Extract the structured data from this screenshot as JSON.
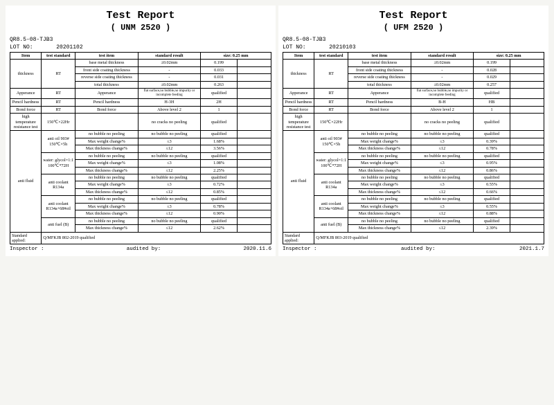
{
  "reports": [
    {
      "title": "Test Report",
      "subtitle": "( UNM 2520 )",
      "doc_no": "QR8.5-08-TJB3",
      "lot_label": "LOT NO:",
      "lot": "20201102",
      "headers": [
        "Item",
        "test standard",
        "test item",
        "standard result",
        "size: 0.25 mm",
        ""
      ],
      "thickness": {
        "item": "thickness",
        "std": "RT",
        "rows": [
          [
            "base metal thickness",
            "±0.02mm",
            "0.199",
            ""
          ],
          [
            "front side coating thickness",
            "-",
            "0.033",
            ""
          ],
          [
            "reverse side coating thickness",
            "-",
            "0.031",
            ""
          ],
          [
            "total thickness",
            "±0.02mm",
            "0.263",
            ""
          ]
        ]
      },
      "appearance": {
        "item": "Apperance",
        "std": "RT",
        "test": "Apperance",
        "res": "flat surface,no bubble,no impurity or incomplete feeding",
        "v": "qualified",
        "b": ""
      },
      "pencil": {
        "item": "Pencil hardness",
        "std": "RT",
        "test": "Pencil hardness",
        "res": "H-3H",
        "v": "2H",
        "b": ""
      },
      "bond": {
        "item": "Bond force",
        "std": "RT",
        "test": "Bond force",
        "res": "Above level 2",
        "v": "1",
        "b": ""
      },
      "hightemp": {
        "item": "high temperature resistance test",
        "std": "150℃×22Hr",
        "test": "",
        "res": "no cracks no peeling",
        "v": "qualified",
        "b": ""
      },
      "antifluid_label": "anti fluid",
      "groups": [
        {
          "name": "anti oil 903# 150℃×5h",
          "rows": [
            [
              "no bubble no peeling",
              "no bubble no peeling",
              "qualified",
              ""
            ],
            [
              "Max weight change%",
              "≤3",
              "1.68%",
              ""
            ],
            [
              "Max thickness change%",
              "≤12",
              "3.56%",
              ""
            ]
          ]
        },
        {
          "name": "water: glycol=1:1 100℃*72H",
          "rows": [
            [
              "no bubble no peeling",
              "no bubble no peeling",
              "qualified",
              ""
            ],
            [
              "Max weight change%",
              "≤3",
              "1.08%",
              ""
            ],
            [
              "Max thickness change%",
              "≤12",
              "2.25%",
              ""
            ]
          ]
        },
        {
          "name": "anti coolant R134a",
          "rows": [
            [
              "no bubble no peeling",
              "no bubble no peeling",
              "qualified",
              ""
            ],
            [
              "Max weight change%",
              "≤3",
              "0.72%",
              ""
            ],
            [
              "Max thickness change%",
              "≤12",
              "0.85%",
              ""
            ]
          ]
        },
        {
          "name": "anti coolant R134a+68#oil",
          "rows": [
            [
              "no bubble no peeling",
              "no bubble no peeling",
              "qualified",
              ""
            ],
            [
              "Max weight change%",
              "≤3",
              "0.78%",
              ""
            ],
            [
              "Max thickness change%",
              "≤12",
              "0.90%",
              ""
            ]
          ]
        },
        {
          "name": "anti fuel (B)",
          "rows": [
            [
              "no bubble no peeling",
              "no bubble no peeling",
              "qualified",
              ""
            ],
            [
              "Max thickness change%",
              "≤12",
              "2.62%",
              ""
            ]
          ]
        }
      ],
      "standard_row": {
        "label": "Standard applied:",
        "value": "Q/MFKJB 802-2019 qualified"
      },
      "footer": {
        "inspector": "Inspector :",
        "audited": "audited by:",
        "date": "2020.11.6"
      }
    },
    {
      "title": "Test Report",
      "subtitle": "( UFM 2520 )",
      "doc_no": "QR8.5-08-TJB3",
      "lot_label": "LOT NO:",
      "lot": "20210103",
      "headers": [
        "Item",
        "test standard",
        "test item",
        "standard result",
        "size: 0.25 mm",
        ""
      ],
      "thickness": {
        "item": "thickness",
        "std": "RT",
        "rows": [
          [
            "base metal thickness",
            "±0.02mm",
            "0.199",
            ""
          ],
          [
            "front side coating thickness",
            "-",
            "0.028",
            ""
          ],
          [
            "reverse side coating thickness",
            "-",
            "0.029",
            ""
          ],
          [
            "total thickness",
            "±0.02mm",
            "0.257",
            ""
          ]
        ]
      },
      "appearance": {
        "item": "Apperance",
        "std": "RT",
        "test": "Apperance",
        "res": "flat surface,no bubble,no impurity or incomplete feeding",
        "v": "qualified",
        "b": ""
      },
      "pencil": {
        "item": "Pencil hardness",
        "std": "RT",
        "test": "Pencil hardness",
        "res": "B-H",
        "v": "HB",
        "b": ""
      },
      "bond": {
        "item": "Bond force",
        "std": "RT",
        "test": "Bond force",
        "res": "Above level 2",
        "v": "1",
        "b": ""
      },
      "hightemp": {
        "item": "high temperature resistance test",
        "std": "150℃×22Hr",
        "test": "",
        "res": "no cracks no peeling",
        "v": "qualified",
        "b": ""
      },
      "antifluid_label": "anti fluid",
      "groups": [
        {
          "name": "anti oil 903# 150℃×5h",
          "rows": [
            [
              "no bubble no peeling",
              "no bubble no peeling",
              "qualified",
              ""
            ],
            [
              "Max weight change%",
              "≤3",
              "0.39%",
              ""
            ],
            [
              "Max thickness change%",
              "≤12",
              "0.78%",
              ""
            ]
          ]
        },
        {
          "name": "water: glycol=1:1 100℃*72H",
          "rows": [
            [
              "no bubble no peeling",
              "no bubble no peeling",
              "qualified",
              ""
            ],
            [
              "Max weight change%",
              "≤3",
              "0.95%",
              ""
            ],
            [
              "Max thickness change%",
              "≤12",
              "0.86%",
              ""
            ]
          ]
        },
        {
          "name": "anti coolant R134a",
          "rows": [
            [
              "no bubble no peeling",
              "no bubble no peeling",
              "qualified",
              ""
            ],
            [
              "Max weight change%",
              "≤3",
              "0.55%",
              ""
            ],
            [
              "Max thickness change%",
              "≤12",
              "0.66%",
              ""
            ]
          ]
        },
        {
          "name": "anti coolant R134a+68#oil",
          "rows": [
            [
              "no bubble no peeling",
              "no bubble no peeling",
              "qualified",
              ""
            ],
            [
              "Max weight change%",
              "≤3",
              "0.55%",
              ""
            ],
            [
              "Max thickness change%",
              "≤12",
              "0.88%",
              ""
            ]
          ]
        },
        {
          "name": "anti fuel (B)",
          "rows": [
            [
              "no bubble no peeling",
              "no bubble no peeling",
              "qualified",
              ""
            ],
            [
              "Max thickness change%",
              "≤12",
              "2.39%",
              ""
            ]
          ]
        }
      ],
      "standard_row": {
        "label": "Standard applied:",
        "value": "Q/MFKJB 803-2019 qualified"
      },
      "footer": {
        "inspector": "Inspector :",
        "audited": "audited by:",
        "date": "2021.1.7"
      }
    }
  ]
}
